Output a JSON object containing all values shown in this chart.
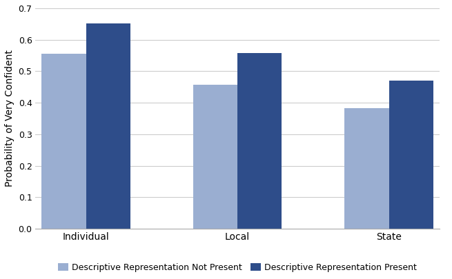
{
  "categories": [
    "Individual",
    "Local",
    "State"
  ],
  "not_present": [
    0.556,
    0.458,
    0.383
  ],
  "present": [
    0.652,
    0.557,
    0.47
  ],
  "color_not_present": "#9aaed1",
  "color_present": "#2e4d8a",
  "ylabel": "Probability of Very Confident",
  "ylim": [
    0,
    0.7
  ],
  "yticks": [
    0.0,
    0.1,
    0.2,
    0.3,
    0.4,
    0.5,
    0.6,
    0.7
  ],
  "legend_not_present": "Descriptive Representation Not Present",
  "legend_present": "Descriptive Representation Present",
  "bar_width": 0.22,
  "group_positions": [
    0.25,
    1.0,
    1.75
  ],
  "background_color": "#ffffff"
}
